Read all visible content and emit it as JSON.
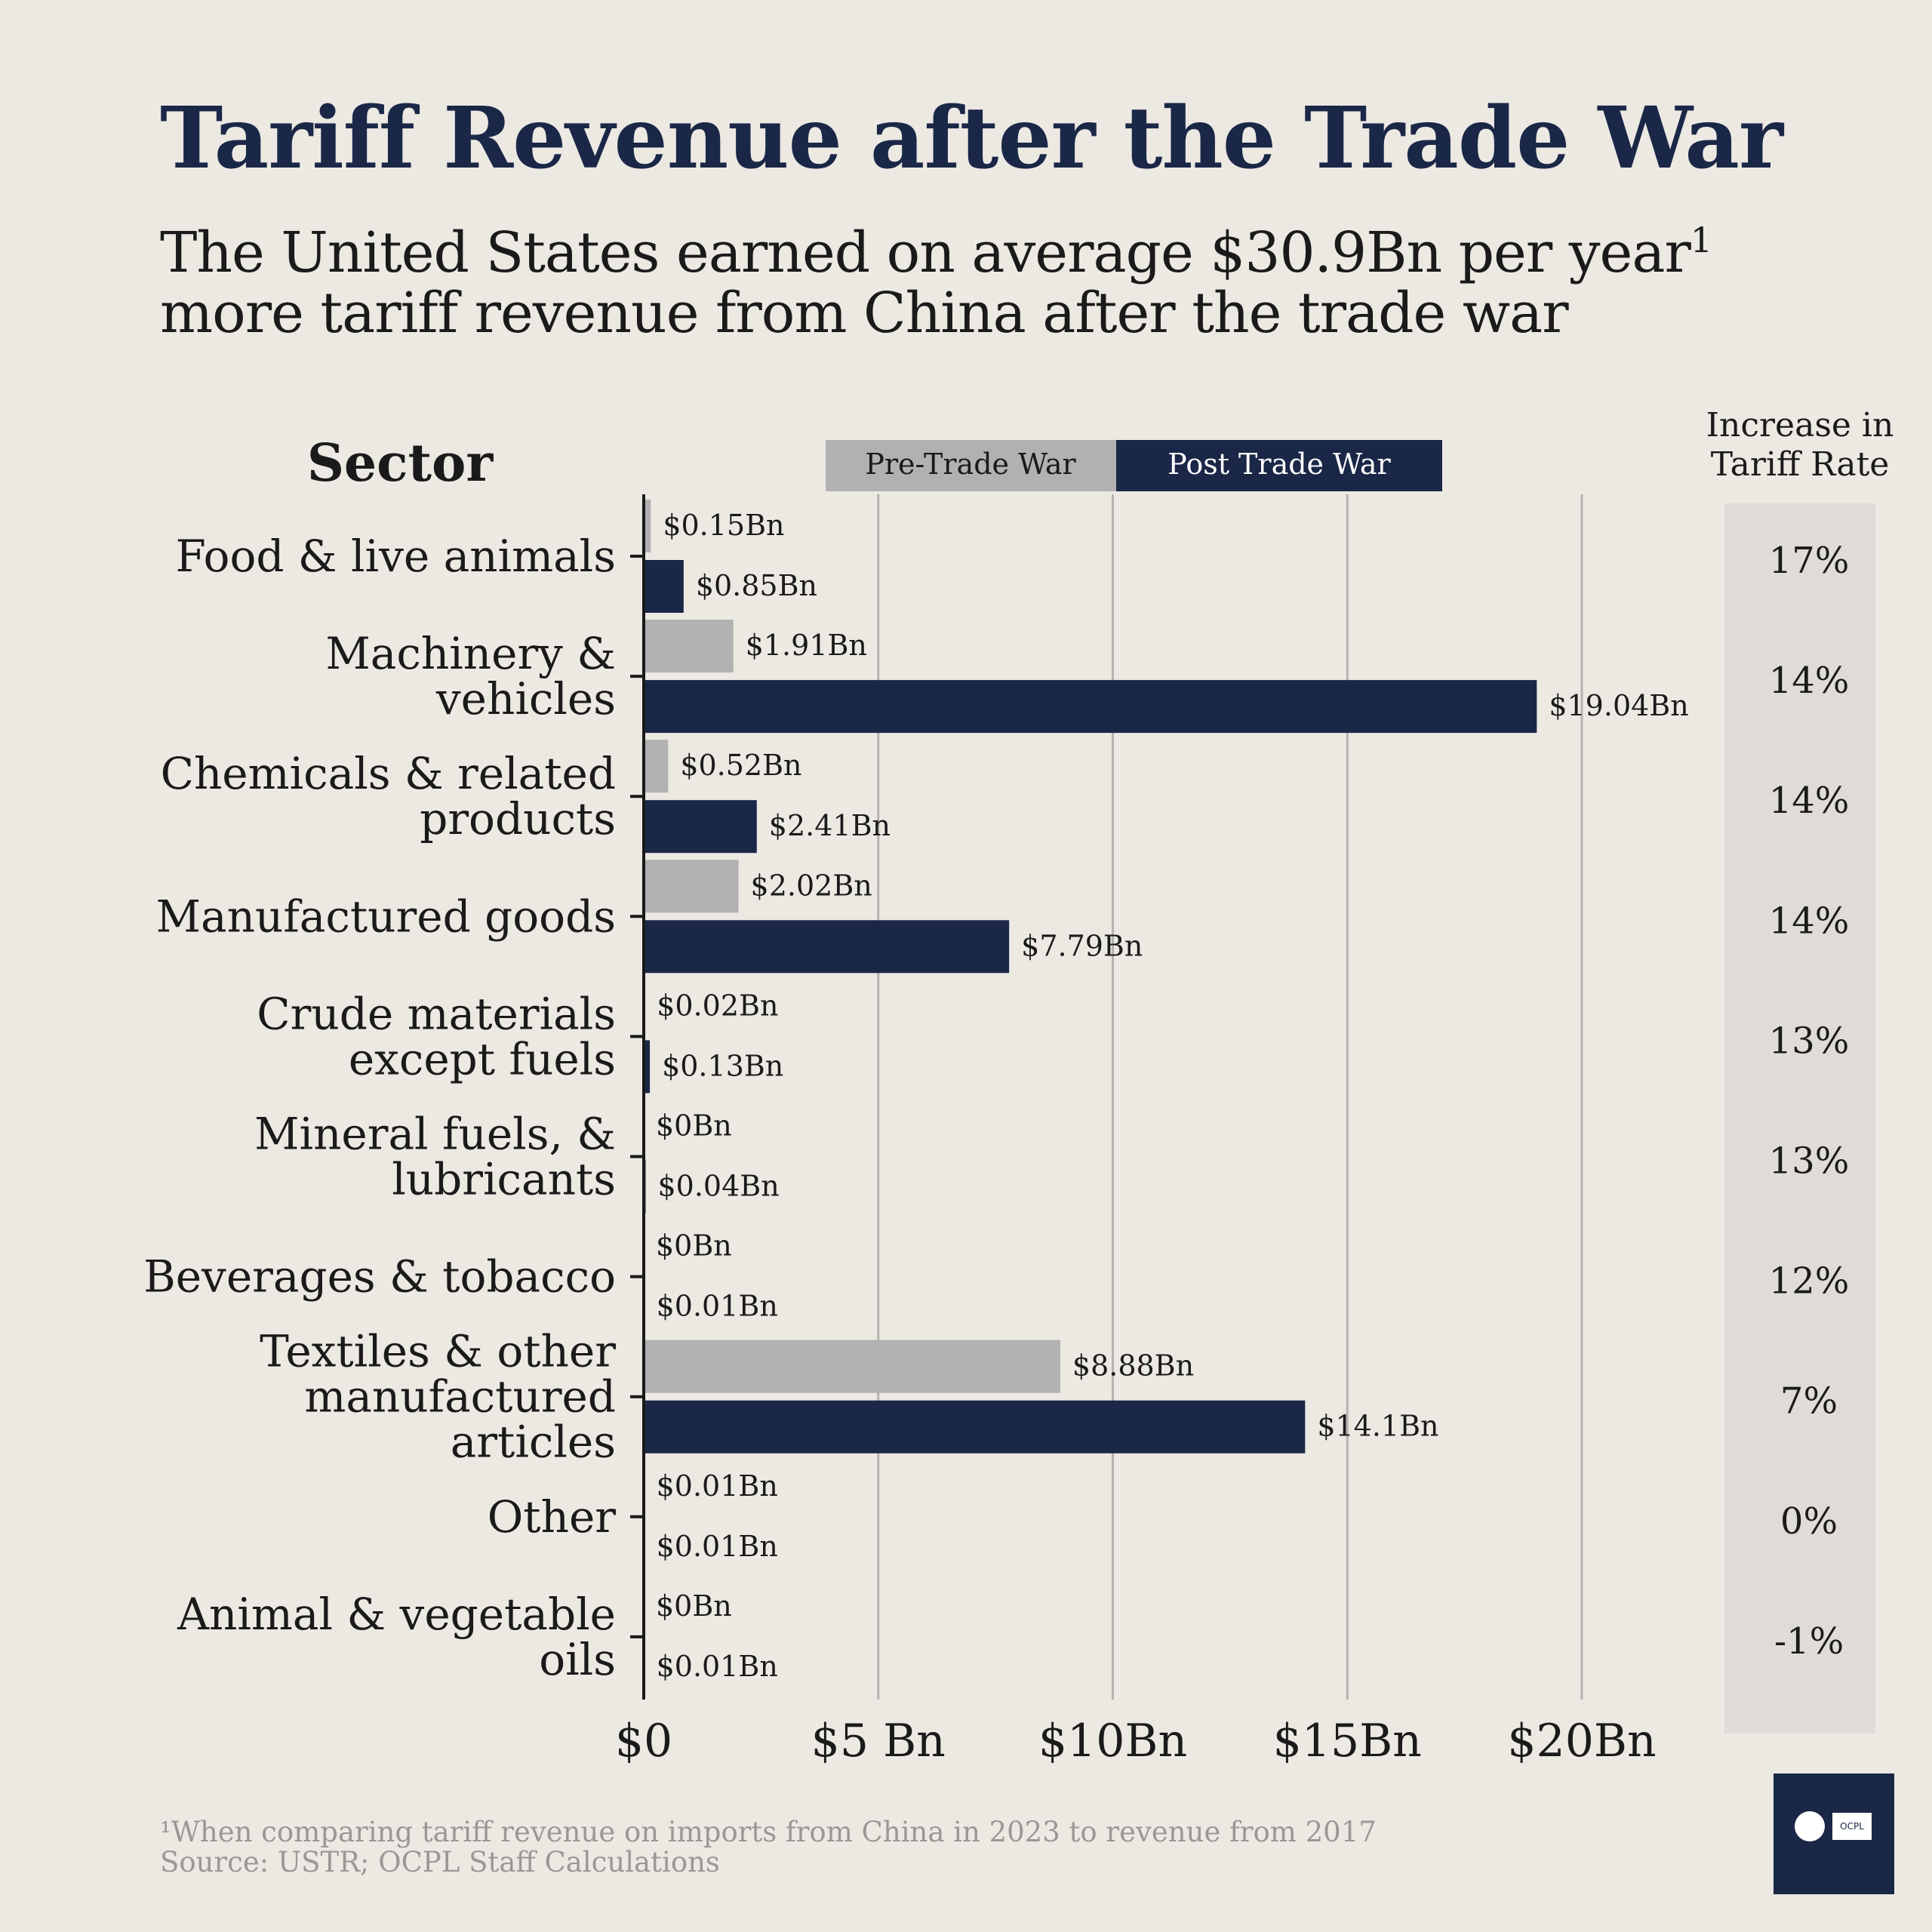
{
  "header": {
    "title": "Tariff Revenue after the Trade War",
    "subtitle_line1": "The United States earned on average $30.9Bn per year",
    "subtitle_sup": "1",
    "subtitle_line2": "more tariff revenue from China after the trade war"
  },
  "chart_data": {
    "type": "bar",
    "orientation": "horizontal",
    "title": "Tariff Revenue after the Trade War",
    "ylabel": "Sector",
    "xlabel": "",
    "xlim": [
      0,
      20
    ],
    "xticks": [
      0,
      5,
      10,
      15,
      20
    ],
    "xtick_labels": [
      "$0",
      "$5 Bn",
      "$10Bn",
      "$15Bn",
      "$20Bn"
    ],
    "grid": "vertical",
    "categories": [
      [
        "Food & live animals"
      ],
      [
        "Machinery &",
        "vehicles"
      ],
      [
        "Chemicals & related",
        "products"
      ],
      [
        "Manufactured goods"
      ],
      [
        "Crude materials",
        "except fuels"
      ],
      [
        "Mineral fuels, &",
        "lubricants"
      ],
      [
        "Beverages & tobacco"
      ],
      [
        "Textiles & other",
        "manufactured",
        "articles"
      ],
      [
        "Other"
      ],
      [
        "Animal & vegetable",
        "oils"
      ]
    ],
    "series": [
      {
        "name": "Pre-Trade War",
        "color": "#B1B1B1",
        "values": [
          0.15,
          1.91,
          0.52,
          2.02,
          0.02,
          0,
          0,
          8.88,
          0.01,
          0
        ],
        "labels": [
          "$0.15Bn",
          "$1.91Bn",
          "$0.52Bn",
          "$2.02Bn",
          "$0.02Bn",
          "$0Bn",
          "$0Bn",
          "$8.88Bn",
          "$0.01Bn",
          "$0Bn"
        ]
      },
      {
        "name": "Post Trade War",
        "color": "#1B2747",
        "values": [
          0.85,
          19.04,
          2.41,
          7.79,
          0.13,
          0.04,
          0.01,
          14.1,
          0.01,
          0.01
        ],
        "labels": [
          "$0.85Bn",
          "$19.04Bn",
          "$2.41Bn",
          "$7.79Bn",
          "$0.13Bn",
          "$0.04Bn",
          "$0.01Bn",
          "$14.1Bn",
          "$0.01Bn",
          "$0.01Bn"
        ]
      }
    ],
    "legend": {
      "position": "top",
      "items": [
        "Pre-Trade War",
        "Post Trade War"
      ]
    },
    "side_column": {
      "header": [
        "Increase in",
        "Tariff Rate"
      ],
      "values": [
        "17%",
        "14%",
        "14%",
        "14%",
        "13%",
        "13%",
        "12%",
        "7%",
        "0%",
        "-1%"
      ]
    }
  },
  "footer": {
    "footnote": "¹When comparing tariff revenue on imports from China in 2023 to revenue from 2017",
    "source": "Source: USTR; OCPL Staff Calculations"
  },
  "logo": {
    "text": "OCPL"
  },
  "colors": {
    "background": "#ECE9E3",
    "post": "#1B2747",
    "pre": "#B1B1B1",
    "side_column": "#DFDCD7",
    "grid": "#B5B3AF"
  }
}
